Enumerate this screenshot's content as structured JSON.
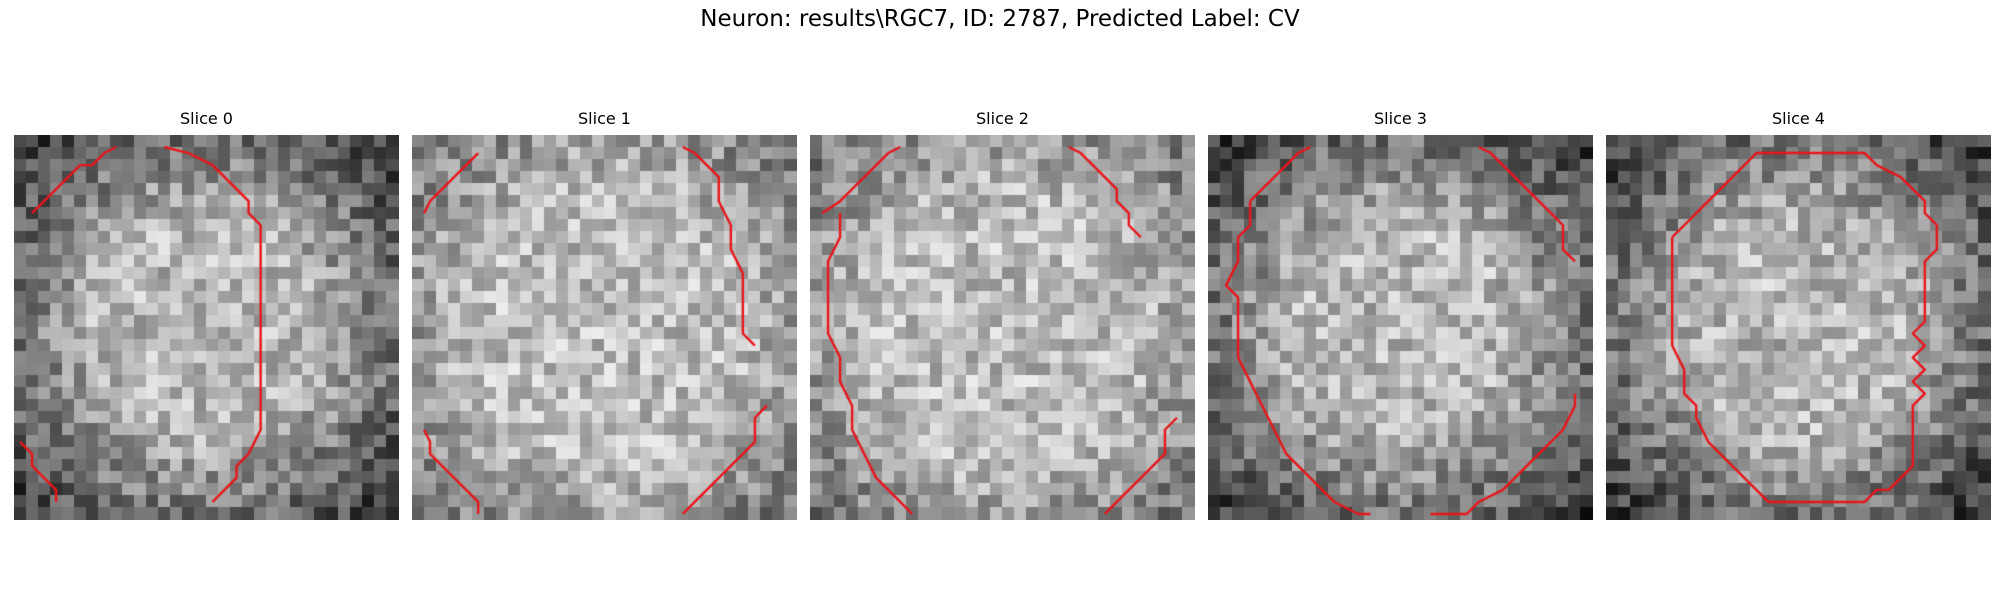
{
  "figure": {
    "title": "Neuron: results\\RGC7, ID: 2787, Predicted Label: CV",
    "background": "#ffffff"
  },
  "slices": [
    {
      "title": "Slice 0",
      "seed": 11,
      "dark_edges": true
    },
    {
      "title": "Slice 1",
      "seed": 23,
      "dark_edges": false
    },
    {
      "title": "Slice 2",
      "seed": 37,
      "dark_edges": false
    },
    {
      "title": "Slice 3",
      "seed": 53,
      "dark_edges": true
    },
    {
      "title": "Slice 4",
      "seed": 71,
      "dark_edges": true
    }
  ],
  "image": {
    "colormap": "gray",
    "contour_color": "#e8161b"
  }
}
